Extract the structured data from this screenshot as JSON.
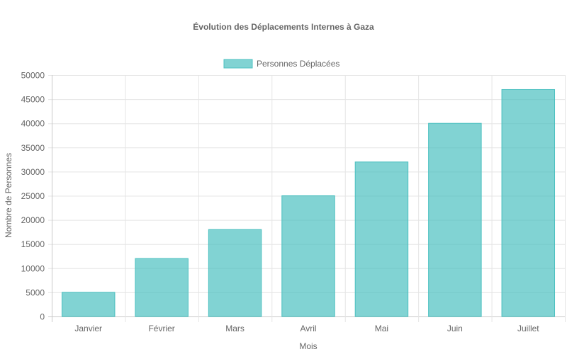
{
  "chart_data": {
    "type": "bar",
    "title": "Évolution des Déplacements Internes à Gaza",
    "xlabel": "Mois",
    "ylabel": "Nombre de Personnes",
    "categories": [
      "Janvier",
      "Février",
      "Mars",
      "Avril",
      "Mai",
      "Juin",
      "Juillet"
    ],
    "series": [
      {
        "name": "Personnes Déplacées",
        "values": [
          5000,
          12000,
          18000,
          25000,
          32000,
          40000,
          47000
        ]
      }
    ],
    "ylim": [
      0,
      50000
    ],
    "yticks": [
      0,
      5000,
      10000,
      15000,
      20000,
      25000,
      30000,
      35000,
      40000,
      45000,
      50000
    ],
    "grid": true,
    "legend_position": "top-center",
    "colors": {
      "bar_fill": "#4bc0c0",
      "bar_stroke": "#4bc0c0",
      "grid": "#e5e5e5",
      "axis": "#c8c8c8",
      "text": "#666666"
    }
  }
}
